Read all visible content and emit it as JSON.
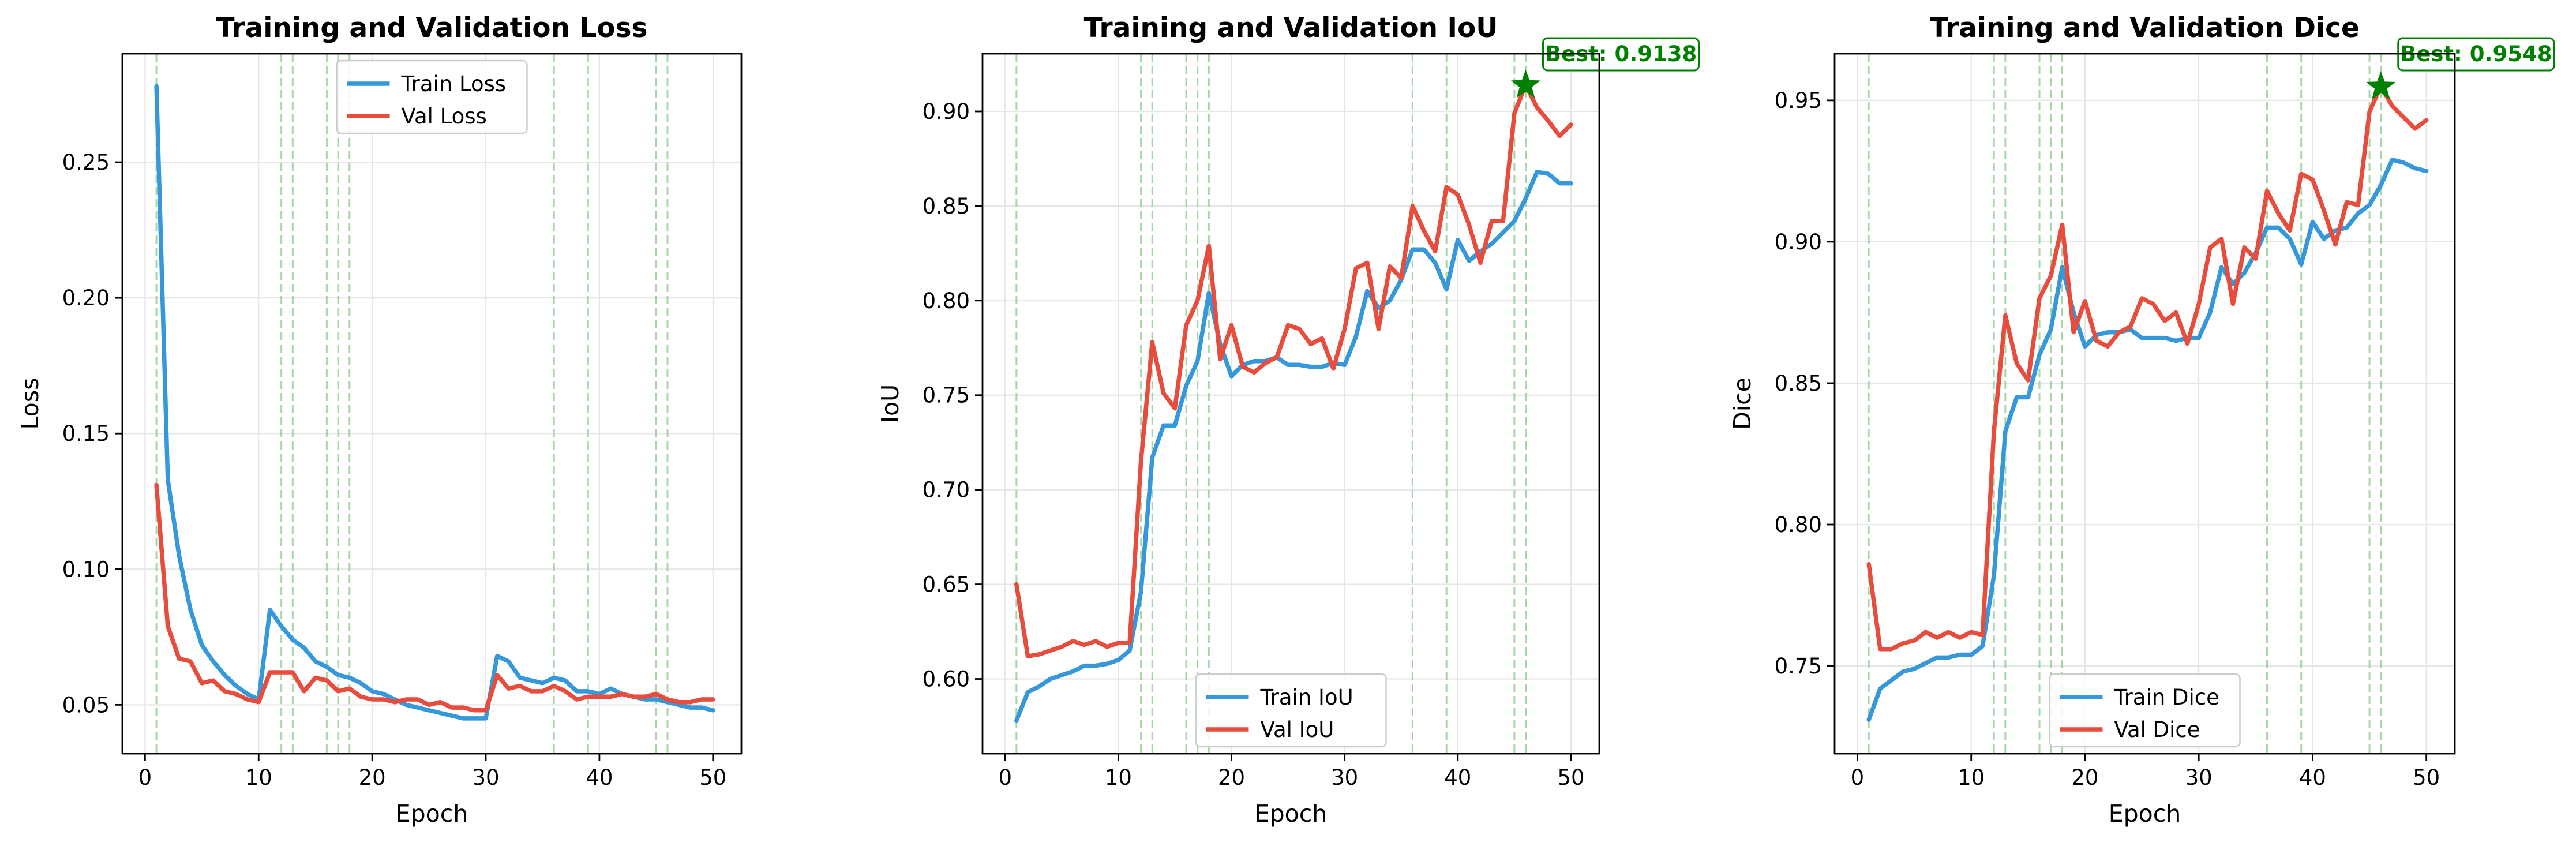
{
  "chart_data": [
    {
      "type": "line",
      "title": "Training and Validation Loss",
      "xlabel": "Epoch",
      "ylabel": "Loss",
      "xlim": [
        -2.0,
        52.5
      ],
      "ylim": [
        0.032,
        0.29
      ],
      "xticks": [
        0,
        10,
        20,
        30,
        40,
        50
      ],
      "yticks": [
        0.05,
        0.1,
        0.15,
        0.2,
        0.25
      ],
      "ytick_labels": [
        "0.05",
        "0.10",
        "0.15",
        "0.20",
        "0.25"
      ],
      "grid": true,
      "legend_position": "top-center",
      "vlines": [
        1,
        12,
        13,
        16,
        17,
        18,
        36,
        39,
        45,
        46
      ],
      "vline_color": "#8fcc8f",
      "x": [
        1,
        2,
        3,
        4,
        5,
        6,
        7,
        8,
        9,
        10,
        11,
        12,
        13,
        14,
        15,
        16,
        17,
        18,
        19,
        20,
        21,
        22,
        23,
        24,
        25,
        26,
        27,
        28,
        29,
        30,
        31,
        32,
        33,
        34,
        35,
        36,
        37,
        38,
        39,
        40,
        41,
        42,
        43,
        44,
        45,
        46,
        47,
        48,
        49,
        50
      ],
      "series": [
        {
          "name": "Train Loss",
          "color": "#3498db",
          "values": [
            0.278,
            0.133,
            0.105,
            0.085,
            0.072,
            0.066,
            0.061,
            0.057,
            0.054,
            0.052,
            0.085,
            0.079,
            0.074,
            0.071,
            0.066,
            0.064,
            0.061,
            0.06,
            0.058,
            0.055,
            0.054,
            0.052,
            0.05,
            0.049,
            0.048,
            0.047,
            0.046,
            0.045,
            0.045,
            0.045,
            0.068,
            0.066,
            0.06,
            0.059,
            0.058,
            0.06,
            0.059,
            0.055,
            0.055,
            0.054,
            0.056,
            0.054,
            0.053,
            0.052,
            0.052,
            0.051,
            0.05,
            0.049,
            0.049,
            0.048
          ]
        },
        {
          "name": "Val Loss",
          "color": "#e74c3c",
          "values": [
            0.131,
            0.079,
            0.067,
            0.066,
            0.058,
            0.059,
            0.055,
            0.054,
            0.052,
            0.051,
            0.062,
            0.062,
            0.062,
            0.055,
            0.06,
            0.059,
            0.055,
            0.056,
            0.053,
            0.052,
            0.052,
            0.051,
            0.052,
            0.052,
            0.05,
            0.051,
            0.049,
            0.049,
            0.048,
            0.048,
            0.061,
            0.056,
            0.057,
            0.055,
            0.055,
            0.057,
            0.055,
            0.052,
            0.053,
            0.053,
            0.053,
            0.054,
            0.053,
            0.053,
            0.054,
            0.052,
            0.051,
            0.051,
            0.052,
            0.052
          ]
        }
      ]
    },
    {
      "type": "line",
      "title": "Training and Validation IoU",
      "xlabel": "Epoch",
      "ylabel": "IoU",
      "xlim": [
        -2.0,
        52.5
      ],
      "ylim": [
        0.5605,
        0.9305
      ],
      "xticks": [
        0,
        10,
        20,
        30,
        40,
        50
      ],
      "yticks": [
        0.6,
        0.65,
        0.7,
        0.75,
        0.8,
        0.85,
        0.9
      ],
      "ytick_labels": [
        "0.60",
        "0.65",
        "0.70",
        "0.75",
        "0.80",
        "0.85",
        "0.90"
      ],
      "grid": true,
      "legend_position": "bottom-center",
      "vlines": [
        1,
        12,
        13,
        16,
        17,
        18,
        36,
        39,
        45,
        46
      ],
      "vline_color": "#8fcc8f",
      "best": {
        "label": "Best: 0.9138",
        "x": 46,
        "y": 0.9138,
        "color": "#008000"
      },
      "x": [
        1,
        2,
        3,
        4,
        5,
        6,
        7,
        8,
        9,
        10,
        11,
        12,
        13,
        14,
        15,
        16,
        17,
        18,
        19,
        20,
        21,
        22,
        23,
        24,
        25,
        26,
        27,
        28,
        29,
        30,
        31,
        32,
        33,
        34,
        35,
        36,
        37,
        38,
        39,
        40,
        41,
        42,
        43,
        44,
        45,
        46,
        47,
        48,
        49,
        50
      ],
      "series": [
        {
          "name": "Train IoU",
          "color": "#3498db",
          "values": [
            0.578,
            0.593,
            0.596,
            0.6,
            0.602,
            0.604,
            0.607,
            0.607,
            0.608,
            0.61,
            0.615,
            0.646,
            0.717,
            0.734,
            0.734,
            0.755,
            0.768,
            0.804,
            0.777,
            0.76,
            0.766,
            0.768,
            0.768,
            0.77,
            0.766,
            0.766,
            0.765,
            0.765,
            0.767,
            0.766,
            0.781,
            0.805,
            0.796,
            0.8,
            0.811,
            0.827,
            0.827,
            0.82,
            0.806,
            0.832,
            0.821,
            0.826,
            0.83,
            0.836,
            0.842,
            0.854,
            0.868,
            0.867,
            0.862,
            0.862
          ]
        },
        {
          "name": "Val IoU",
          "color": "#e74c3c",
          "values": [
            0.65,
            0.612,
            0.613,
            0.615,
            0.617,
            0.62,
            0.618,
            0.62,
            0.617,
            0.619,
            0.619,
            0.715,
            0.778,
            0.751,
            0.743,
            0.787,
            0.8,
            0.829,
            0.769,
            0.787,
            0.765,
            0.762,
            0.767,
            0.77,
            0.787,
            0.785,
            0.777,
            0.78,
            0.764,
            0.785,
            0.817,
            0.82,
            0.785,
            0.818,
            0.812,
            0.85,
            0.837,
            0.826,
            0.86,
            0.856,
            0.84,
            0.82,
            0.842,
            0.842,
            0.899,
            0.914,
            0.902,
            0.895,
            0.887,
            0.893
          ]
        }
      ]
    },
    {
      "type": "line",
      "title": "Training and Validation Dice",
      "xlabel": "Epoch",
      "ylabel": "Dice",
      "xlim": [
        -2.0,
        52.5
      ],
      "ylim": [
        0.719,
        0.9665
      ],
      "xticks": [
        0,
        10,
        20,
        30,
        40,
        50
      ],
      "yticks": [
        0.75,
        0.8,
        0.85,
        0.9,
        0.95
      ],
      "ytick_labels": [
        "0.75",
        "0.80",
        "0.85",
        "0.90",
        "0.95"
      ],
      "grid": true,
      "legend_position": "bottom-center",
      "vlines": [
        1,
        12,
        13,
        16,
        17,
        18,
        36,
        39,
        45,
        46
      ],
      "vline_color": "#8fcc8f",
      "best": {
        "label": "Best: 0.9548",
        "x": 46,
        "y": 0.9548,
        "color": "#008000"
      },
      "x": [
        1,
        2,
        3,
        4,
        5,
        6,
        7,
        8,
        9,
        10,
        11,
        12,
        13,
        14,
        15,
        16,
        17,
        18,
        19,
        20,
        21,
        22,
        23,
        24,
        25,
        26,
        27,
        28,
        29,
        30,
        31,
        32,
        33,
        34,
        35,
        36,
        37,
        38,
        39,
        40,
        41,
        42,
        43,
        44,
        45,
        46,
        47,
        48,
        49,
        50
      ],
      "series": [
        {
          "name": "Train Dice",
          "color": "#3498db",
          "values": [
            0.731,
            0.742,
            0.745,
            0.748,
            0.749,
            0.751,
            0.753,
            0.753,
            0.754,
            0.754,
            0.757,
            0.782,
            0.833,
            0.845,
            0.845,
            0.86,
            0.869,
            0.891,
            0.875,
            0.863,
            0.867,
            0.868,
            0.868,
            0.869,
            0.866,
            0.866,
            0.866,
            0.865,
            0.866,
            0.866,
            0.875,
            0.891,
            0.885,
            0.889,
            0.896,
            0.905,
            0.905,
            0.901,
            0.892,
            0.907,
            0.901,
            0.904,
            0.905,
            0.91,
            0.913,
            0.92,
            0.929,
            0.928,
            0.926,
            0.925
          ]
        },
        {
          "name": "Val Dice",
          "color": "#e74c3c",
          "values": [
            0.786,
            0.756,
            0.756,
            0.758,
            0.759,
            0.762,
            0.76,
            0.762,
            0.76,
            0.762,
            0.761,
            0.833,
            0.874,
            0.857,
            0.851,
            0.88,
            0.888,
            0.906,
            0.868,
            0.879,
            0.865,
            0.863,
            0.868,
            0.87,
            0.88,
            0.878,
            0.872,
            0.875,
            0.864,
            0.878,
            0.898,
            0.901,
            0.878,
            0.898,
            0.894,
            0.918,
            0.91,
            0.904,
            0.924,
            0.922,
            0.911,
            0.899,
            0.914,
            0.913,
            0.946,
            0.955,
            0.948,
            0.944,
            0.94,
            0.943
          ]
        }
      ]
    }
  ]
}
